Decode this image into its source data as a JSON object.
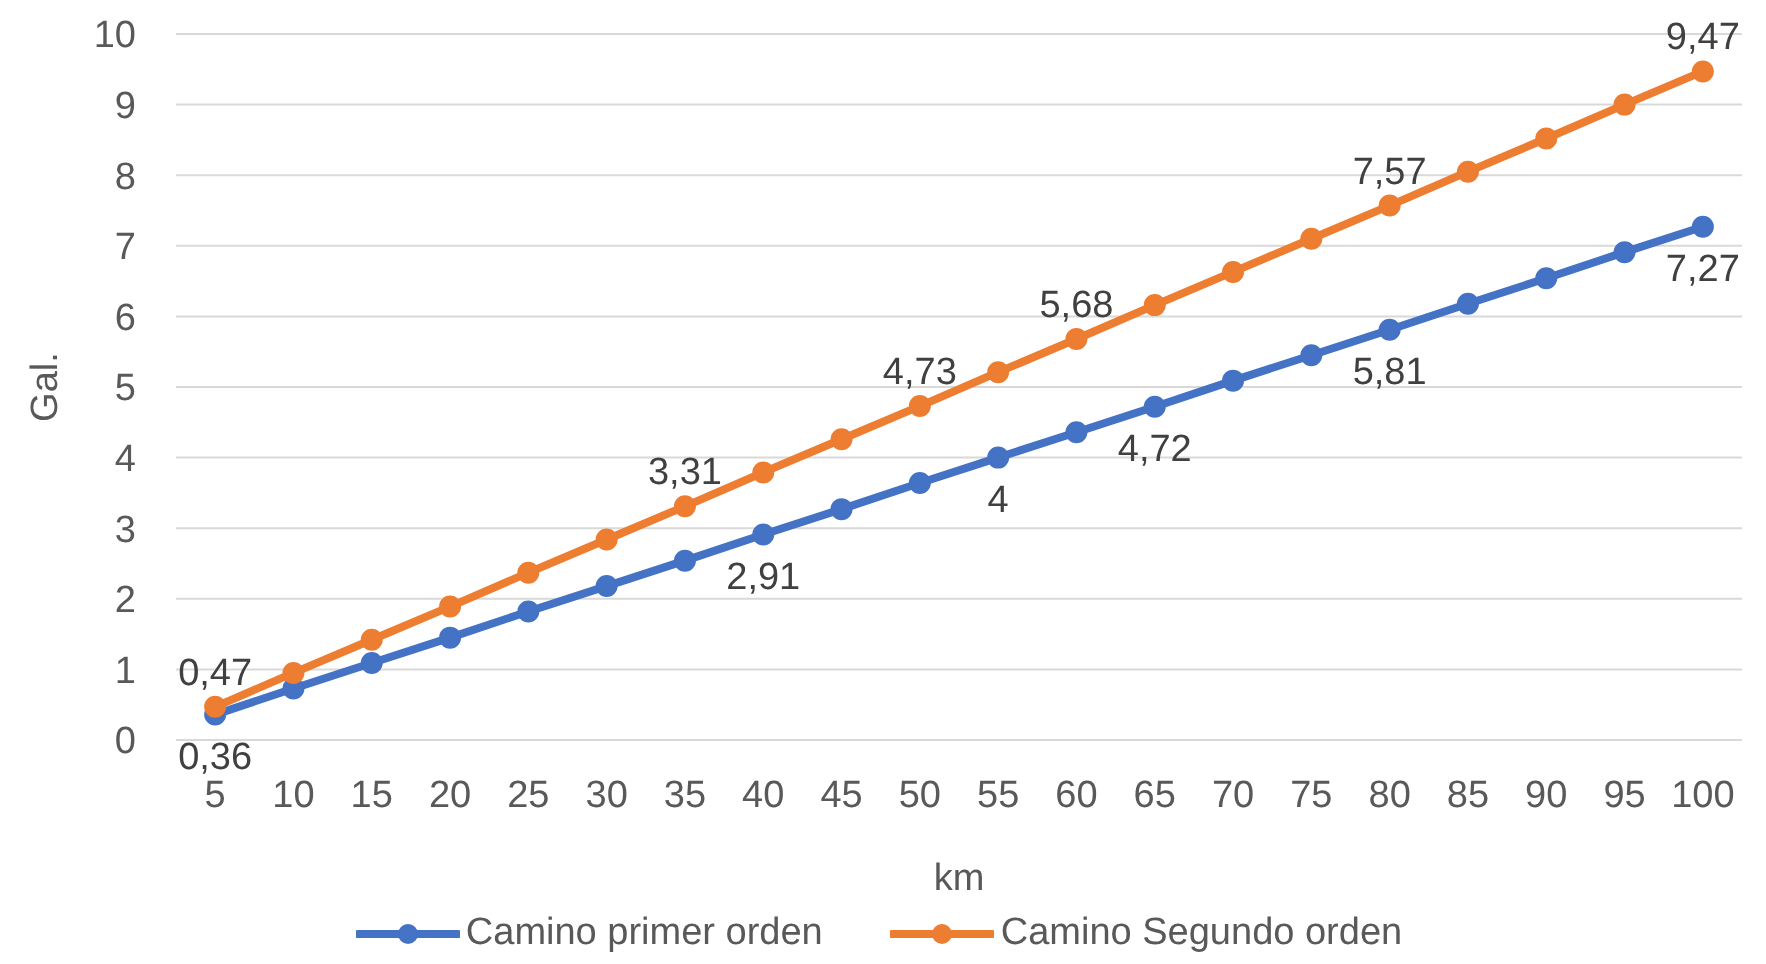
{
  "chart_data": {
    "type": "line",
    "xlabel": "km",
    "ylabel": "Gal.",
    "categories": [
      "5",
      "10",
      "15",
      "20",
      "25",
      "30",
      "35",
      "40",
      "45",
      "50",
      "55",
      "60",
      "65",
      "70",
      "75",
      "80",
      "85",
      "90",
      "95",
      "100"
    ],
    "series": [
      {
        "name": "Camino primer orden",
        "color": "#4472c4",
        "values": [
          0.36,
          0.73,
          1.09,
          1.45,
          1.82,
          2.18,
          2.54,
          2.91,
          3.27,
          3.64,
          4,
          4.36,
          4.72,
          5.09,
          5.45,
          5.81,
          6.18,
          6.54,
          6.91,
          7.27
        ],
        "value_labels": [
          "0,36",
          null,
          null,
          null,
          null,
          null,
          null,
          "2,91",
          null,
          null,
          "4",
          null,
          "4,72",
          null,
          null,
          "5,81",
          null,
          null,
          null,
          "7,27"
        ]
      },
      {
        "name": "Camino Segundo orden",
        "color": "#ed7d31",
        "values": [
          0.47,
          0.95,
          1.42,
          1.89,
          2.37,
          2.84,
          3.31,
          3.79,
          4.26,
          4.73,
          5.21,
          5.68,
          6.16,
          6.63,
          7.1,
          7.57,
          8.05,
          8.52,
          9,
          9.47
        ],
        "value_labels": [
          "0,47",
          null,
          null,
          null,
          null,
          null,
          "3,31",
          null,
          null,
          "4,73",
          null,
          "5,68",
          null,
          null,
          null,
          "7,57",
          null,
          null,
          null,
          "9,47"
        ]
      }
    ],
    "ylim": [
      0,
      10
    ],
    "yticks": [
      0,
      1,
      2,
      3,
      4,
      5,
      6,
      7,
      8,
      9,
      10
    ],
    "grid": "y",
    "legend": "bottom",
    "marker": "circle",
    "line_style": "solid"
  }
}
